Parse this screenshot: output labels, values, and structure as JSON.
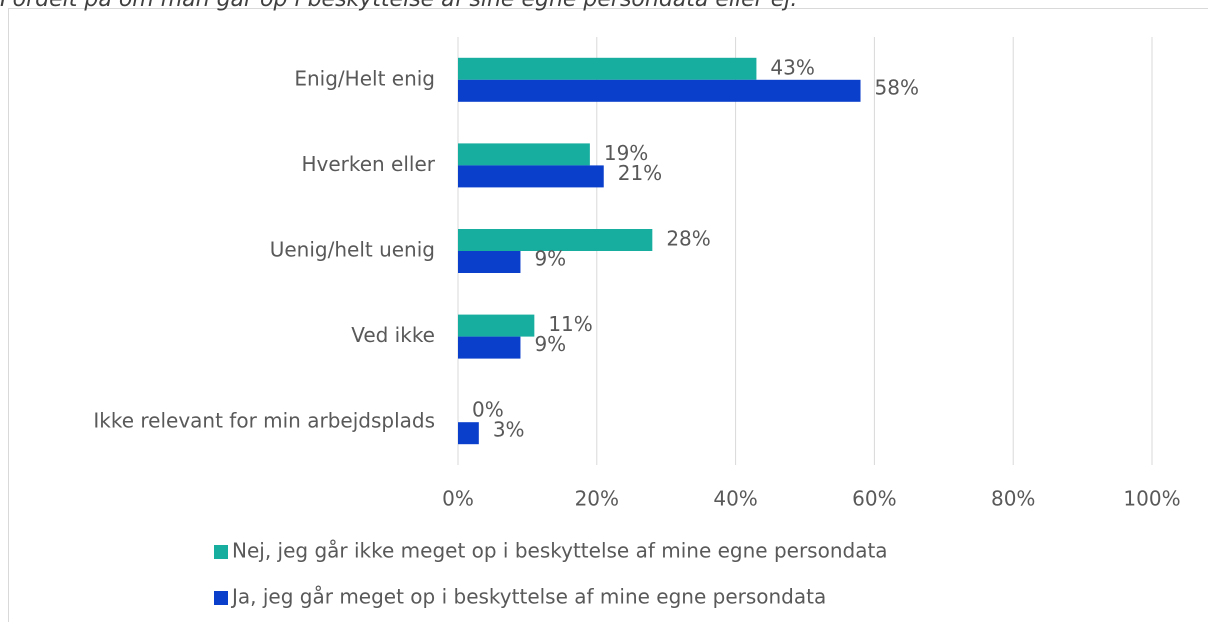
{
  "chart_data": {
    "type": "barh",
    "subtitle": "Fordelt på om man går op i beskyttelse af sine egne persondata eller ej.",
    "categories": [
      "Enig/Helt enig",
      "Hverken eller",
      "Uenig/helt uenig",
      "Ved ikke",
      "Ikke relevant for min arbejdsplads"
    ],
    "series": [
      {
        "name": "Nej, jeg går ikke meget op i beskyttelse af mine egne persondata",
        "color": "#17ad9f",
        "values": [
          43,
          19,
          28,
          11,
          0
        ],
        "value_labels": [
          "43%",
          "19%",
          "28%",
          "11%",
          "0%"
        ]
      },
      {
        "name": "Ja, jeg går meget op i beskyttelse af mine egne persondata",
        "color": "#0a3fcc",
        "values": [
          58,
          21,
          9,
          9,
          3
        ],
        "value_labels": [
          "58%",
          "21%",
          "9%",
          "9%",
          "3%"
        ]
      }
    ],
    "xlim": [
      0,
      100
    ],
    "xticks": [
      {
        "value": 0,
        "label": "0%"
      },
      {
        "value": 20,
        "label": "20%"
      },
      {
        "value": 40,
        "label": "40%"
      },
      {
        "value": 60,
        "label": "60%"
      },
      {
        "value": 80,
        "label": "80%"
      },
      {
        "value": 100,
        "label": "100%"
      }
    ],
    "grid": true,
    "legend": "bottom"
  }
}
